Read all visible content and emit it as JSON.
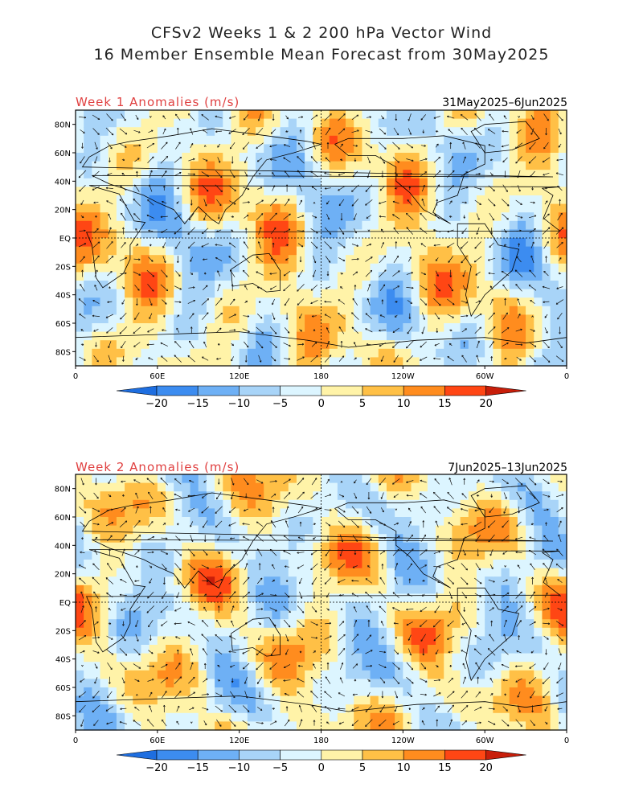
{
  "title": {
    "line1": "CFSv2 Weeks 1 & 2 200 hPa Vector Wind",
    "line2": "16 Member Ensemble Mean Forecast from 30May2025"
  },
  "panels": [
    {
      "title": "Week 1 Anomalies (m/s)",
      "date_range": "31May2025–6Jun2025"
    },
    {
      "title": "Week 2 Anomalies (m/s)",
      "date_range": "7Jun2025–13Jun2025"
    }
  ],
  "lat_labels": [
    "80N",
    "60N",
    "40N",
    "20N",
    "EQ",
    "20S",
    "40S",
    "60S",
    "80S"
  ],
  "lon_labels": [
    "0",
    "60E",
    "120E",
    "180",
    "120W",
    "60W",
    "0"
  ],
  "colorbar": {
    "labels": [
      "−20",
      "−15",
      "−10",
      "−5",
      "0",
      "5",
      "10",
      "15",
      "20"
    ],
    "colors": [
      "#1e6ee0",
      "#3c8cf0",
      "#6eb0f5",
      "#a8d4f8",
      "#dcf5ff",
      "#fff3a8",
      "#ffc046",
      "#ff8c1e",
      "#ff4614",
      "#c81e0a"
    ]
  }
}
